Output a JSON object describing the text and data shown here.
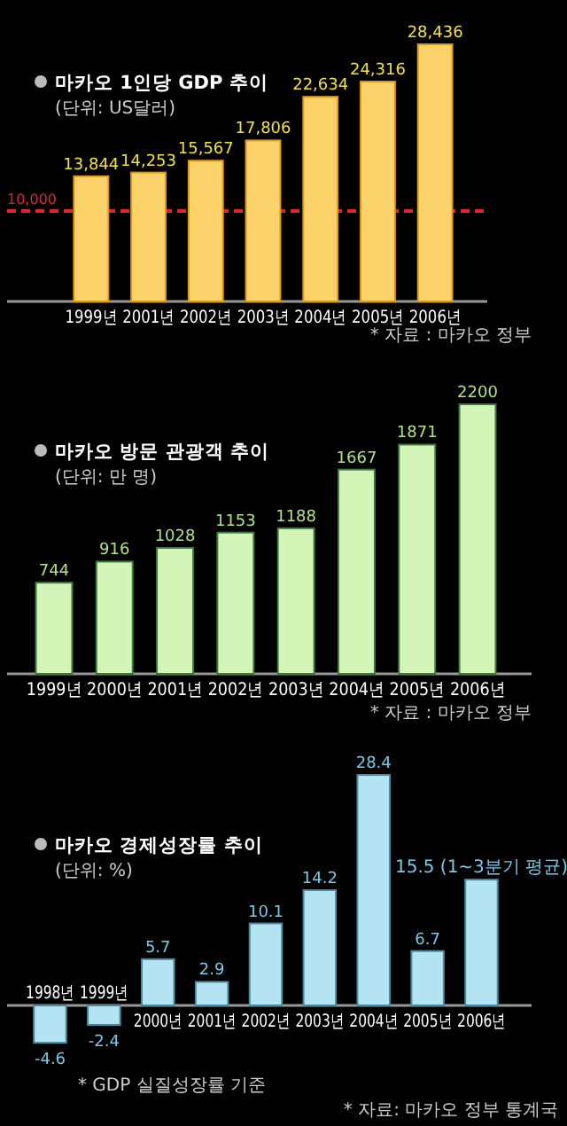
{
  "chart_data": [
    {
      "type": "bar",
      "title": "마카오 1인당 GDP 추이",
      "subtitle": "(단위: US달러)",
      "categories": [
        "1999년",
        "2001년",
        "2002년",
        "2003년",
        "2004년",
        "2005년",
        "2006년"
      ],
      "values": [
        13844,
        14253,
        15567,
        17806,
        22634,
        24316,
        28436
      ],
      "value_labels": [
        "13,844",
        "14,253",
        "15,567",
        "17,806",
        "22,634",
        "24,316",
        "28,436"
      ],
      "color": "#fcd36a",
      "ref_lines": [
        {
          "axis": "y",
          "value": 10000,
          "label": "10,000",
          "color": "#e8202a",
          "line_style": "dashed"
        }
      ],
      "annotations": [
        "* 자료 : 마카오 정부"
      ]
    },
    {
      "type": "bar",
      "title": "마카오 방문 관광객 추이",
      "subtitle": "(단위: 만 명)",
      "categories": [
        "1999년",
        "2000년",
        "2001년",
        "2002년",
        "2003년",
        "2004년",
        "2005년",
        "2006년"
      ],
      "values": [
        744,
        916,
        1028,
        1153,
        1188,
        1667,
        1871,
        2200
      ],
      "data_labels": true,
      "color": "#d4f5b8",
      "annotations": [
        "* 자료 : 마카오 정부"
      ]
    },
    {
      "type": "bar",
      "title": "마카오 경제성장률 추이",
      "subtitle": "(단위: %)",
      "categories": [
        "1998년",
        "1999년",
        "2000년",
        "2001년",
        "2002년",
        "2003년",
        "2004년",
        "2005년",
        "2006년"
      ],
      "values": [
        -4.6,
        -2.4,
        5.7,
        2.9,
        10.1,
        14.2,
        28.4,
        6.7,
        15.5
      ],
      "value_labels": [
        "-4.6",
        "-2.4",
        "5.7",
        "2.9",
        "10.1",
        "14.2",
        "28.4",
        "6.7",
        "15.5 (1~3분기 평균)"
      ],
      "color": "#b4e4f2",
      "annotations": [
        "* GDP 실질성장률 기준",
        "* 자료: 마카오 정부 통계국"
      ]
    }
  ]
}
